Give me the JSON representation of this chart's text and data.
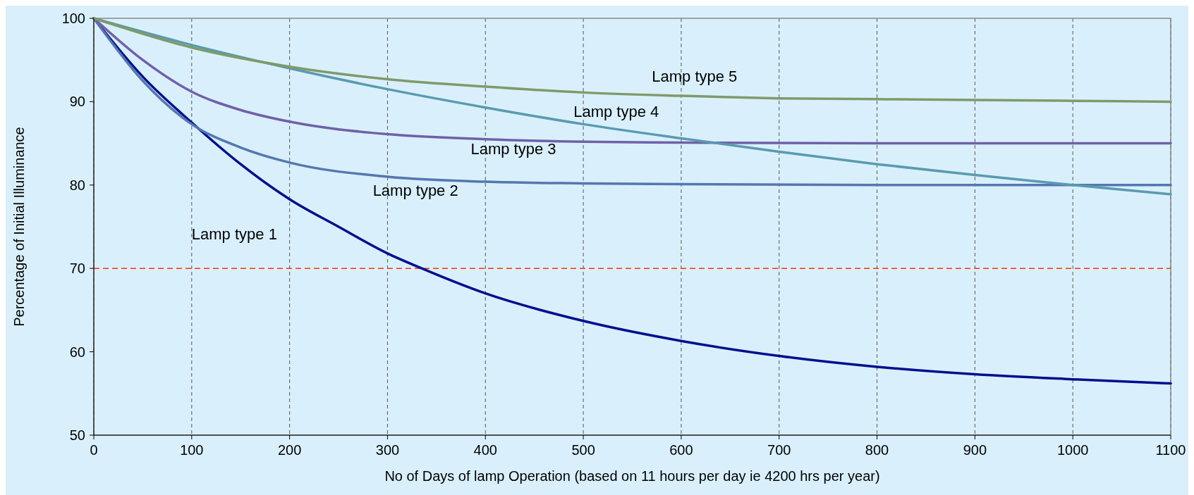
{
  "chart_data": {
    "type": "line",
    "xlabel": "No of Days of lamp Operation (based on 11 hours per day ie 4200 hrs per year)",
    "ylabel": "Percentage of Initial Illuminance",
    "xlim": [
      0,
      1100
    ],
    "xticks": [
      0,
      100,
      200,
      300,
      400,
      500,
      600,
      700,
      800,
      900,
      1000,
      1100
    ],
    "ylim": [
      50,
      100
    ],
    "yticks": [
      50,
      60,
      70,
      80,
      90,
      100
    ],
    "grid": "x",
    "marker": "none",
    "line_style": "solid",
    "series": [
      {
        "name": "Lamp type 1",
        "color": "#000f8f",
        "x": [
          0,
          50,
          100,
          150,
          200,
          250,
          300,
          335,
          400,
          500,
          600,
          700,
          800,
          900,
          1000,
          1100
        ],
        "values": [
          100,
          93,
          87.5,
          82.5,
          78.3,
          75,
          71.8,
          70,
          67,
          63.7,
          61.3,
          59.5,
          58.2,
          57.3,
          56.7,
          56.2
        ]
      },
      {
        "name": "Lamp type 2",
        "color": "#5577b0",
        "x": [
          0,
          50,
          100,
          150,
          200,
          300,
          400,
          500,
          600,
          800,
          1100
        ],
        "values": [
          100,
          92.5,
          87.3,
          84.5,
          82.7,
          81,
          80.4,
          80.2,
          80.1,
          80,
          80
        ]
      },
      {
        "name": "Lamp type 3",
        "color": "#7060a8",
        "x": [
          0,
          50,
          100,
          150,
          200,
          300,
          400,
          500,
          600,
          800,
          1100
        ],
        "values": [
          100,
          95,
          91.2,
          89,
          87.6,
          86.1,
          85.5,
          85.2,
          85.1,
          85,
          85
        ]
      },
      {
        "name": "Lamp type 4",
        "color": "#5a9ab0",
        "x": [
          0,
          100,
          200,
          300,
          400,
          500,
          600,
          700,
          800,
          900,
          1000,
          1100
        ],
        "values": [
          100,
          96.8,
          94,
          91.5,
          89.3,
          87.3,
          85.6,
          84,
          82.5,
          81.2,
          80,
          78.9
        ]
      },
      {
        "name": "Lamp type 5",
        "color": "#7f9a6a",
        "x": [
          0,
          100,
          200,
          300,
          400,
          500,
          600,
          700,
          800,
          900,
          1000,
          1100
        ],
        "values": [
          100,
          96.5,
          94.2,
          92.7,
          91.8,
          91.1,
          90.7,
          90.4,
          90.3,
          90.2,
          90.1,
          90
        ]
      }
    ],
    "ref_lines": [
      {
        "axis": "y",
        "value": 70,
        "color": "#ff3300",
        "line_style": "dashed"
      }
    ]
  }
}
